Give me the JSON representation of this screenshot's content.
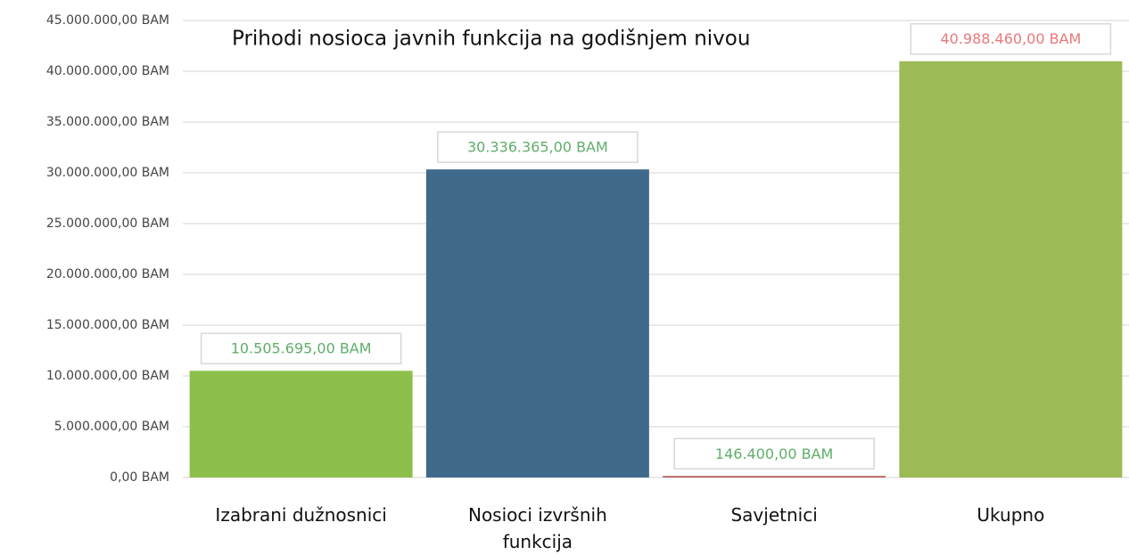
{
  "chart_data": {
    "type": "bar",
    "title": "Prihodi nosioca javnih funkcija na godišnjem nivou",
    "categories": [
      "Izabrani dužnosnici",
      "Nosioci izvršnih funkcija",
      "Savjetnici",
      "Ukupno"
    ],
    "values": [
      10505695,
      30336365,
      146400,
      40988460
    ],
    "value_labels": [
      "10.505.695,00 BAM",
      "30.336.365,00 BAM",
      "146.400,00 BAM",
      "40.988.460,00 BAM"
    ],
    "colors": [
      "#8cc04b",
      "#3f6a8c",
      "#b05a55",
      "#9cbb56"
    ],
    "label_colors": [
      "#5fae6a",
      "#5fae6a",
      "#5fae6a",
      "#e8787a"
    ],
    "ylim": [
      0,
      45000000
    ],
    "yticks": [
      {
        "value": 0,
        "label": "0,00 BAM"
      },
      {
        "value": 5000000,
        "label": "5.000.000,00 BAM"
      },
      {
        "value": 10000000,
        "label": "10.000.000,00 BAM"
      },
      {
        "value": 15000000,
        "label": "15.000.000,00 BAM"
      },
      {
        "value": 20000000,
        "label": "20.000.000,00 BAM"
      },
      {
        "value": 25000000,
        "label": "25.000.000,00 BAM"
      },
      {
        "value": 30000000,
        "label": "30.000.000,00 BAM"
      },
      {
        "value": 35000000,
        "label": "35.000.000,00 BAM"
      },
      {
        "value": 40000000,
        "label": "40.000.000,00 BAM"
      },
      {
        "value": 45000000,
        "label": "45.000.000,00 BAM"
      }
    ],
    "grid": true
  }
}
